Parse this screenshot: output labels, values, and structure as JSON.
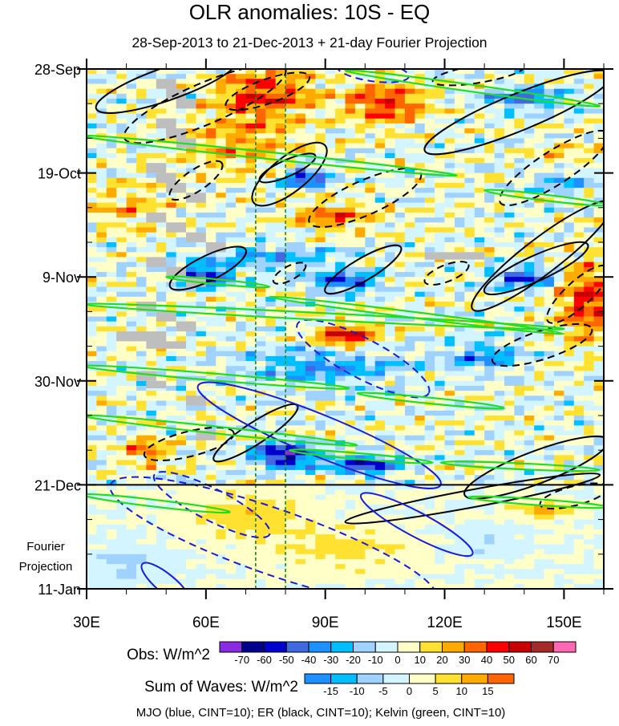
{
  "chart_data": {
    "type": "heatmap",
    "title": "OLR anomalies: 10S - EQ",
    "subtitle": "28-Sep-2013 to 21-Dec-2013 + 21-day Fourier Projection",
    "projection_label": [
      "Fourier",
      "Projection"
    ],
    "x_axis": {
      "range": [
        30,
        160
      ],
      "ticks": [
        30,
        60,
        90,
        120,
        150
      ],
      "tick_labels": [
        "30E",
        "60E",
        "90E",
        "120E",
        "150E"
      ],
      "minor_step": 10
    },
    "y_axis": {
      "unit": "days since 28-Sep-2013",
      "range": [
        0,
        105
      ],
      "ticks": [
        0,
        21,
        42,
        63,
        84,
        105
      ],
      "tick_labels": [
        "28-Sep",
        "19-Oct",
        "9-Nov",
        "30-Nov",
        "21-Dec",
        "11-Jan"
      ],
      "minor_step": 7
    },
    "forecast_start_day": 84,
    "reference_lons": [
      72.5,
      80
    ],
    "grid": {
      "lon_step": 2.5,
      "day_step": 1,
      "noise_amplitude_obs": 16,
      "noise_amplitude_projection": 4
    },
    "anomaly_features": [
      {
        "lon": 75,
        "day": 5,
        "dlon": 12,
        "dday": 5,
        "value": 42
      },
      {
        "lon": 105,
        "day": 7,
        "dlon": 10,
        "dday": 4,
        "value": 45
      },
      {
        "lon": 68,
        "day": 15,
        "dlon": 15,
        "dday": 6,
        "value": 25
      },
      {
        "lon": 92,
        "day": 30,
        "dlon": 10,
        "dday": 3,
        "value": 35
      },
      {
        "lon": 40,
        "day": 28,
        "dlon": 10,
        "dday": 5,
        "value": 20
      },
      {
        "lon": 150,
        "day": 20,
        "dlon": 8,
        "dday": 4,
        "value": 30
      },
      {
        "lon": 156,
        "day": 47,
        "dlon": 7,
        "dday": 8,
        "value": 45
      },
      {
        "lon": 95,
        "day": 54,
        "dlon": 8,
        "dday": 2.5,
        "value": 52
      },
      {
        "lon": 45,
        "day": 77,
        "dlon": 6,
        "dday": 3,
        "value": 32
      },
      {
        "lon": 70,
        "day": 90,
        "dlon": 15,
        "dday": 5,
        "value": 16
      },
      {
        "lon": 95,
        "day": 97,
        "dlon": 20,
        "dday": 5,
        "value": 13
      },
      {
        "lon": 145,
        "day": 89,
        "dlon": 8,
        "dday": 2,
        "value": 22
      },
      {
        "lon": 80,
        "day": 78,
        "dlon": 8,
        "dday": 2.5,
        "value": -68
      },
      {
        "lon": 100,
        "day": 80,
        "dlon": 8,
        "dday": 2,
        "value": -55
      },
      {
        "lon": 85,
        "day": 22,
        "dlon": 6,
        "dday": 2,
        "value": -55
      },
      {
        "lon": 60,
        "day": 42,
        "dlon": 6,
        "dday": 2,
        "value": -58
      },
      {
        "lon": 95,
        "day": 43,
        "dlon": 8,
        "dday": 2,
        "value": -50
      },
      {
        "lon": 140,
        "day": 42,
        "dlon": 8,
        "dday": 2,
        "value": -50
      },
      {
        "lon": 140,
        "day": 6,
        "dlon": 10,
        "dday": 2,
        "value": -40
      },
      {
        "lon": 150,
        "day": 22,
        "dlon": 8,
        "dday": 3,
        "value": -45
      },
      {
        "lon": 75,
        "day": 38,
        "dlon": 20,
        "dday": 3,
        "value": -25
      },
      {
        "lon": 90,
        "day": 60,
        "dlon": 20,
        "dday": 4,
        "value": -30
      },
      {
        "lon": 130,
        "day": 58,
        "dlon": 10,
        "dday": 3,
        "value": -30
      },
      {
        "lon": 40,
        "day": 100,
        "dlon": 10,
        "dday": 4,
        "value": -13
      },
      {
        "lon": 130,
        "day": 95,
        "dlon": 10,
        "dday": 3,
        "value": -11
      }
    ],
    "missing_data": [
      [
        47.5,
        2,
        5,
        2
      ],
      [
        50,
        4,
        5,
        2
      ],
      [
        52.5,
        6,
        5,
        2
      ],
      [
        47.5,
        10,
        5,
        2
      ],
      [
        50,
        12,
        5,
        2
      ],
      [
        52.5,
        14,
        5,
        2
      ],
      [
        45,
        19,
        5,
        2
      ],
      [
        47.5,
        21,
        5,
        2
      ],
      [
        50,
        23,
        5,
        2
      ],
      [
        55,
        25,
        5,
        2
      ],
      [
        45,
        29,
        5,
        2
      ],
      [
        50,
        31,
        5,
        2
      ],
      [
        55,
        33,
        5,
        2
      ],
      [
        60,
        35,
        5,
        2
      ],
      [
        45,
        38,
        5,
        2
      ],
      [
        50,
        40,
        5,
        2
      ],
      [
        55,
        42,
        5,
        2
      ],
      [
        42.5,
        47,
        5,
        2
      ],
      [
        47.5,
        49,
        5,
        2
      ],
      [
        52.5,
        51,
        5,
        2
      ],
      [
        37.5,
        53,
        12.5,
        2
      ],
      [
        45,
        55,
        10,
        1.5
      ],
      [
        42.5,
        61,
        5,
        2
      ],
      [
        45,
        63,
        5,
        1.5
      ],
      [
        55,
        66,
        5,
        2
      ],
      [
        57.5,
        73,
        5,
        2
      ],
      [
        115,
        37,
        15,
        1.5
      ]
    ],
    "contour_sets": [
      {
        "wave": "ER",
        "color": "#000000",
        "contours": [
          {
            "from": [
              32.4,
              8
            ],
            "to": [
              68,
              -2
            ],
            "halfwidth": 3.5,
            "sign": 1
          },
          {
            "from": [
              115,
              16.5
            ],
            "to": [
              162,
              1
            ],
            "halfwidth": 4,
            "sign": 1
          },
          {
            "from": [
              72,
              27
            ],
            "to": [
              90,
              15.5
            ],
            "halfwidth": 4.5,
            "sign": 1
          },
          {
            "from": [
              73.5,
              22.5
            ],
            "to": [
              87.5,
              17.5
            ],
            "halfwidth": 1.8,
            "sign": 1
          },
          {
            "from": [
              51,
              44
            ],
            "to": [
              70,
              36.5
            ],
            "halfwidth": 2.8,
            "sign": 1
          },
          {
            "from": [
              90,
              45
            ],
            "to": [
              109,
              36
            ],
            "halfwidth": 2.6,
            "sign": 1
          },
          {
            "from": [
              130,
              45
            ],
            "to": [
              156,
              35.5
            ],
            "halfwidth": 2.8,
            "sign": 1
          },
          {
            "from": [
              127,
              48.5
            ],
            "to": [
              162,
              27
            ],
            "halfwidth": 4.5,
            "sign": 1
          },
          {
            "from": [
              62,
              79
            ],
            "to": [
              83,
              68
            ],
            "halfwidth": 2.6,
            "sign": 1
          },
          {
            "from": [
              95,
              91.5
            ],
            "to": [
              159,
              82
            ],
            "halfwidth": 1.8,
            "sign": 1
          },
          {
            "from": [
              125,
              86
            ],
            "to": [
              161,
              75
            ],
            "halfwidth": 3.5,
            "sign": 1
          },
          {
            "from": [
              65,
              7.5
            ],
            "to": [
              86,
              1.5
            ],
            "halfwidth": 2.6,
            "sign": -1
          },
          {
            "from": [
              39.5,
              14
            ],
            "to": [
              80,
              0
            ],
            "halfwidth": 4.5,
            "sign": -1
          },
          {
            "from": [
              51,
              26
            ],
            "to": [
              64,
              19
            ],
            "halfwidth": 2.6,
            "sign": -1
          },
          {
            "from": [
              86,
              31
            ],
            "to": [
              114,
              21
            ],
            "halfwidth": 3.8,
            "sign": -1
          },
          {
            "from": [
              77,
              43
            ],
            "to": [
              85,
              39.5
            ],
            "halfwidth": 1.6,
            "sign": -1
          },
          {
            "from": [
              115,
              43
            ],
            "to": [
              126,
              39.5
            ],
            "halfwidth": 1.8,
            "sign": -1
          },
          {
            "from": [
              134,
              27
            ],
            "to": [
              161,
              13
            ],
            "halfwidth": 4,
            "sign": -1
          },
          {
            "from": [
              146,
              51
            ],
            "to": [
              161,
              40
            ],
            "halfwidth": 3.5,
            "sign": -1
          },
          {
            "from": [
              132,
              59
            ],
            "to": [
              157,
              52.5
            ],
            "halfwidth": 3,
            "sign": -1
          },
          {
            "from": [
              44.5,
              78
            ],
            "to": [
              67,
              73.5
            ],
            "halfwidth": 2.6,
            "sign": -1
          },
          {
            "from": [
              144,
              88
            ],
            "to": [
              161,
              84.5
            ],
            "halfwidth": 2,
            "sign": -1
          },
          {
            "from": [
              117,
              2.5
            ],
            "to": [
              140,
              -0.5
            ],
            "halfwidth": 1.8,
            "sign": -1
          }
        ]
      },
      {
        "wave": "MJO",
        "color": "#1a1adc",
        "contours": [
          {
            "from": [
              58,
              64
            ],
            "to": [
              119,
              84
            ],
            "halfwidth": 4.5,
            "sign": 1
          },
          {
            "from": [
              99,
              86
            ],
            "to": [
              127,
              98
            ],
            "halfwidth": 2.8,
            "sign": 1
          },
          {
            "from": [
              44,
              100
            ],
            "to": [
              56,
              108
            ],
            "halfwidth": 2.5,
            "sign": 1
          },
          {
            "from": [
              83,
              51.5
            ],
            "to": [
              116,
              65.5
            ],
            "halfwidth": 4.5,
            "sign": -1
          },
          {
            "from": [
              47,
              82
            ],
            "to": [
              76,
              94
            ],
            "halfwidth": 3.6,
            "sign": -1
          },
          {
            "from": [
              36,
              84
            ],
            "to": [
              118,
              107
            ],
            "halfwidth": 7,
            "sign": -1
          },
          {
            "from": [
              93,
              -0.5
            ],
            "to": [
              111,
              1.5
            ],
            "halfwidth": 2,
            "sign": -1
          }
        ]
      },
      {
        "wave": "Kelvin",
        "color": "#22dd22",
        "contours": [
          {
            "from": [
              29,
              13.5
            ],
            "to": [
              123,
              21.5
            ],
            "halfwidth": 0.7,
            "sign": 1
          },
          {
            "from": [
              95,
              0.3
            ],
            "to": [
              159,
              7.5
            ],
            "halfwidth": 0.7,
            "sign": 1
          },
          {
            "from": [
              29,
              47.5
            ],
            "to": [
              150,
              52.5
            ],
            "halfwidth": 0.7,
            "sign": 1
          },
          {
            "from": [
              76,
              46
            ],
            "to": [
              150,
              53.5
            ],
            "halfwidth": 0.6,
            "sign": 1
          },
          {
            "from": [
              29,
              60
            ],
            "to": [
              96,
              64.5
            ],
            "halfwidth": 0.7,
            "sign": 1
          },
          {
            "from": [
              98,
              65.5
            ],
            "to": [
              135,
              68.5
            ],
            "halfwidth": 0.6,
            "sign": 1
          },
          {
            "from": [
              29,
              70
            ],
            "to": [
              98,
              76
            ],
            "halfwidth": 0.7,
            "sign": 1
          },
          {
            "from": [
              81,
              77
            ],
            "to": [
              117,
              79.5
            ],
            "halfwidth": 0.6,
            "sign": 1
          },
          {
            "from": [
              119,
              79.5
            ],
            "to": [
              159,
              81
            ],
            "halfwidth": 0.6,
            "sign": 1
          },
          {
            "from": [
              29,
              86
            ],
            "to": [
              66,
              89.5
            ],
            "halfwidth": 0.7,
            "sign": 1
          },
          {
            "from": [
              126,
              86.5
            ],
            "to": [
              161,
              88.5
            ],
            "halfwidth": 0.6,
            "sign": 1
          },
          {
            "from": [
              130,
              24.5
            ],
            "to": [
              161,
              27.5
            ],
            "halfwidth": 0.6,
            "sign": 1
          },
          {
            "from": [
              50,
              42
            ],
            "to": [
              76,
              44
            ],
            "halfwidth": 0.5,
            "sign": 1
          }
        ]
      }
    ],
    "colorbars": [
      {
        "label": "Obs: W/m^2",
        "levels": [
          -70,
          -60,
          -50,
          -40,
          -30,
          -20,
          -10,
          0,
          10,
          20,
          30,
          40,
          50,
          60,
          70
        ],
        "colors": [
          "#8a2be2",
          "#00008b",
          "#0000cd",
          "#4169e1",
          "#1e90ff",
          "#00bfff",
          "#a0d2ff",
          "#d2f5ff",
          "#ffffc8",
          "#ffe132",
          "#ffaa00",
          "#ff6600",
          "#ff0000",
          "#c80000",
          "#a52a2a",
          "#ff69b4"
        ]
      },
      {
        "label": "Sum of Waves: W/m^2",
        "levels": [
          -15,
          -10,
          -5,
          0,
          5,
          10,
          15
        ],
        "colors": [
          "#1e90ff",
          "#00bfff",
          "#a0d2ff",
          "#d2f5ff",
          "#ffffc8",
          "#ffe132",
          "#ffaa00",
          "#ff6600"
        ]
      }
    ],
    "missing_color": "#bebebe",
    "reference_line_color": "#1a8a1a",
    "footer": "MJO (blue, CINT=10); ER (black, CINT=10); Kelvin (green, CINT=10)"
  }
}
